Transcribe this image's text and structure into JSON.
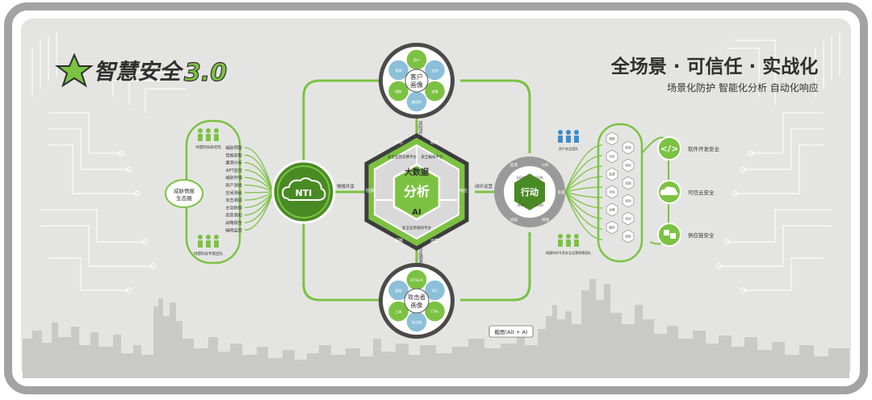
{
  "brand": {
    "name": "智慧安全",
    "version": "3.0"
  },
  "headline": {
    "title": "全场景 · 可信任 · 实战化",
    "subtitle": "场景化防护   智能化分析   自动化响应"
  },
  "left_panel": {
    "ecosystem_label_line1": "威胁情报",
    "ecosystem_label_line2": "生态圈",
    "top_team": "绿盟科技研究院",
    "bottom_team": "绿盟科技专家团队",
    "items": [
      "威胁预警",
      "情报获取",
      "漏洞分析",
      "APT监控",
      "威胁狩猎",
      "资产测绘",
      "空间测绘",
      "攻击溯源",
      "主动防御",
      "态势感知",
      "战略报告",
      "暗网监控"
    ]
  },
  "nti": {
    "label": "NTI"
  },
  "top_circle": {
    "line1": "客户",
    "line2": "画像",
    "segments": [
      "资产",
      "业务",
      "流量",
      "脆弱性",
      "威胁",
      "管理"
    ]
  },
  "bottom_circle": {
    "line1": "攻击者",
    "line2": "画像",
    "segments": [
      "ATT&CK",
      "IOC",
      "TTPs",
      "攻击链",
      "工具",
      "意图"
    ]
  },
  "hexagon": {
    "top_label": "大数据",
    "center_label": "分析",
    "bottom_label": "AI",
    "cell_top_left": "安全运营支撑平台",
    "cell_top_right": "安全编排平台",
    "cell_bottom": "安全态势感知平台",
    "ring_labels": [
      "评估",
      "建设",
      "检测",
      "响应",
      "保障",
      "运营"
    ]
  },
  "connectors": {
    "top": "风险评估",
    "left": "情报共享",
    "right": "闭环运营",
    "bottom": "攻击溯源"
  },
  "action": {
    "label": "行动",
    "segments": [
      "SOAR",
      "EDR",
      "NDR",
      "MDR"
    ],
    "ring": [
      "监测",
      "分析",
      "处置",
      "溯源",
      "加固"
    ]
  },
  "right_team_top": "资产安全团队",
  "right_team_bottom": "绿盟科技专家安全运营保障团队",
  "right_list": {
    "hexes": [
      "情报",
      "检测",
      "分析",
      "响应",
      "处置",
      "加固",
      "评估",
      "咨询",
      "运营",
      "培训",
      "服务",
      "演练"
    ]
  },
  "security_domains": [
    {
      "label": "软件开发安全",
      "icon": "code"
    },
    {
      "label": "可信云安全",
      "icon": "cloud"
    },
    {
      "label": "供应链安全",
      "icon": "cube"
    }
  ],
  "screenshot_hint": "截图(Alt + A)",
  "colors": {
    "green": "#7cc242",
    "dark_green": "#4a8a24",
    "panel": "#e4e5e3",
    "frame": "#9c9c9c",
    "dark": "#3d3d3d"
  }
}
